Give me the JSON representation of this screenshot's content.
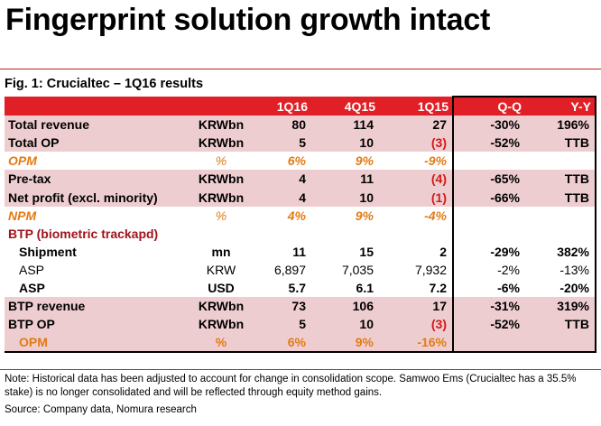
{
  "headline": "Fingerprint solution growth intact",
  "figure_title": "Fig. 1: Crucialtec – 1Q16 results",
  "columns": [
    "",
    "",
    "1Q16",
    "4Q15",
    "1Q15",
    "Q-Q",
    "Y-Y"
  ],
  "rows": [
    {
      "label": "Total revenue",
      "unit": "KRWbn",
      "q1_16": "80",
      "q4_15": "114",
      "q1_15": "27",
      "qq": "-30%",
      "yy": "196%"
    },
    {
      "label": "Total OP",
      "unit": "KRWbn",
      "q1_16": "5",
      "q4_15": "10",
      "q1_15": "(3)",
      "qq": "-52%",
      "yy": "TTB"
    },
    {
      "label": "OPM",
      "unit": "%",
      "q1_16": "6%",
      "q4_15": "9%",
      "q1_15": "-9%",
      "qq": "",
      "yy": ""
    },
    {
      "label": "Pre-tax",
      "unit": "KRWbn",
      "q1_16": "4",
      "q4_15": "11",
      "q1_15": "(4)",
      "qq": "-65%",
      "yy": "TTB"
    },
    {
      "label": "Net profit (excl. minority)",
      "unit": "KRWbn",
      "q1_16": "4",
      "q4_15": "10",
      "q1_15": "(1)",
      "qq": "-66%",
      "yy": "TTB"
    },
    {
      "label": "NPM",
      "unit": "%",
      "q1_16": "4%",
      "q4_15": "9%",
      "q1_15": "-4%",
      "qq": "",
      "yy": ""
    },
    {
      "label": "BTP (biometric trackapd)",
      "unit": "",
      "q1_16": "",
      "q4_15": "",
      "q1_15": "",
      "qq": "",
      "yy": ""
    },
    {
      "label": "Shipment",
      "unit": "mn",
      "q1_16": "11",
      "q4_15": "15",
      "q1_15": "2",
      "qq": "-29%",
      "yy": "382%"
    },
    {
      "label": "ASP",
      "unit": "KRW",
      "q1_16": "6,897",
      "q4_15": "7,035",
      "q1_15": "7,932",
      "qq": "-2%",
      "yy": "-13%"
    },
    {
      "label": "ASP",
      "unit": "USD",
      "q1_16": "5.7",
      "q4_15": "6.1",
      "q1_15": "7.2",
      "qq": "-6%",
      "yy": "-20%"
    },
    {
      "label": "BTP revenue",
      "unit": "KRWbn",
      "q1_16": "73",
      "q4_15": "106",
      "q1_15": "17",
      "qq": "-31%",
      "yy": "319%"
    },
    {
      "label": "BTP OP",
      "unit": "KRWbn",
      "q1_16": "5",
      "q4_15": "10",
      "q1_15": "(3)",
      "qq": "-52%",
      "yy": "TTB"
    },
    {
      "label": "OPM",
      "unit": "%",
      "q1_16": "6%",
      "q4_15": "9%",
      "q1_15": "-16%",
      "qq": "",
      "yy": ""
    }
  ],
  "note": "Note: Historical data has been adjusted to account for change in consolidation scope. Samwoo Ems (Crucialtec has a 35.5% stake) is no longer consolidated and will be reflected through equity method gains.",
  "source": "Source: Company data, Nomura research",
  "colors": {
    "header_red": "#e11f26",
    "row_pink": "#eecdd0",
    "accent_orange": "#e37b14",
    "negative_red": "#d11a1a",
    "section_maroon": "#a0141a"
  }
}
